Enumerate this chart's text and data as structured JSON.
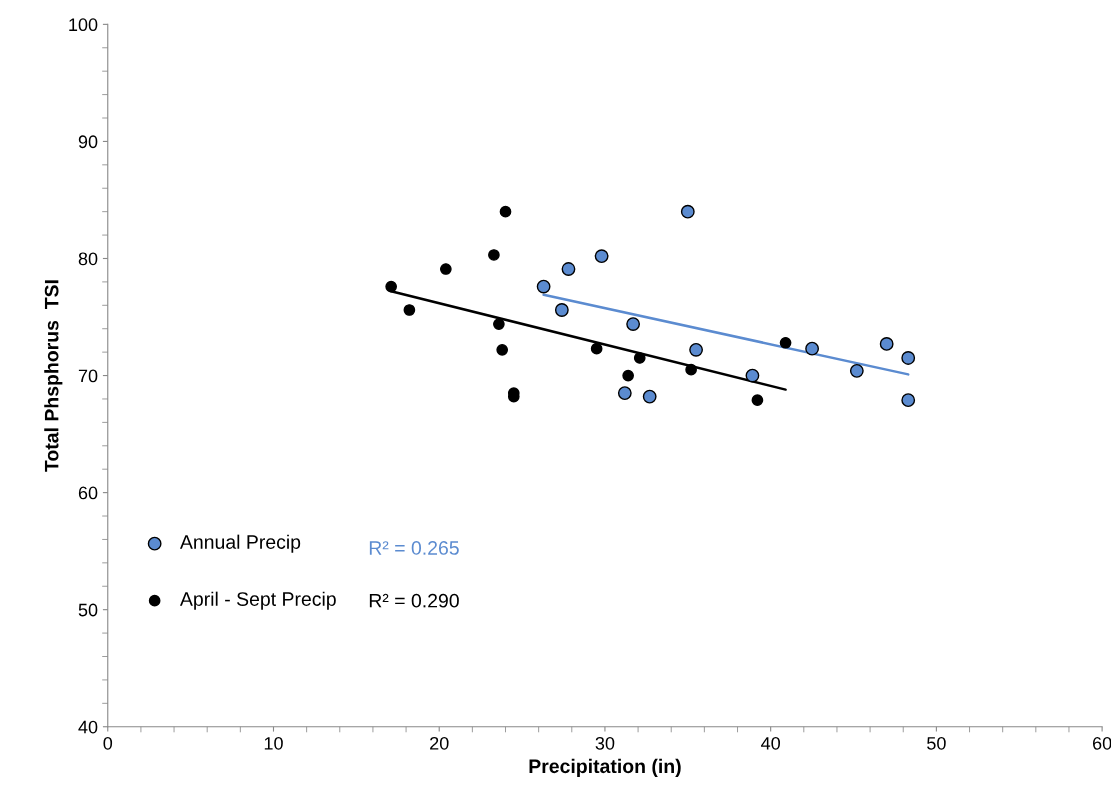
{
  "chart_data": {
    "type": "scatter",
    "xlabel": "Precipitation (in)",
    "ylabel": "Total Phsphorus  TSI",
    "xlim": [
      0,
      60
    ],
    "xticks": [
      0,
      10,
      20,
      30,
      40,
      50,
      60
    ],
    "ylim": [
      40,
      100
    ],
    "yticks": [
      40,
      50,
      60,
      70,
      80,
      90,
      100
    ],
    "grid": false,
    "legend": "left",
    "marker": "circle",
    "series": [
      {
        "name": "Annual Precip",
        "color": "#5b8bd0",
        "x": [
          26.3,
          27.8,
          27.4,
          29.8,
          35.0,
          31.7,
          35.5,
          31.2,
          32.7,
          38.9,
          42.5,
          45.2,
          47.0,
          48.3,
          48.3
        ],
        "values": [
          77.6,
          79.1,
          75.6,
          80.2,
          84.0,
          74.4,
          72.2,
          68.5,
          68.2,
          70.0,
          72.3,
          70.4,
          72.7,
          71.5,
          67.9
        ]
      },
      {
        "name": "April - Sept Precip",
        "color": "#000000",
        "x": [
          17.1,
          18.2,
          20.4,
          23.3,
          24.0,
          23.6,
          23.8,
          24.5,
          24.5,
          29.5,
          32.1,
          31.4,
          35.2,
          40.9,
          39.2
        ],
        "values": [
          77.6,
          75.6,
          79.1,
          80.3,
          84.0,
          74.4,
          72.2,
          68.5,
          68.2,
          72.3,
          71.5,
          70.0,
          70.5,
          72.8,
          67.9
        ]
      },
      {
        "type": "line",
        "marker": "none",
        "color": "#5b8bd0",
        "x": [
          26.3,
          48.3
        ],
        "values": [
          76.9,
          70.1
        ]
      },
      {
        "type": "line",
        "marker": "none",
        "color": "#000000",
        "x": [
          17.1,
          40.9
        ],
        "values": [
          77.2,
          68.8
        ]
      }
    ],
    "annotations": [
      "R² = 0.265",
      "R² = 0.290"
    ]
  }
}
